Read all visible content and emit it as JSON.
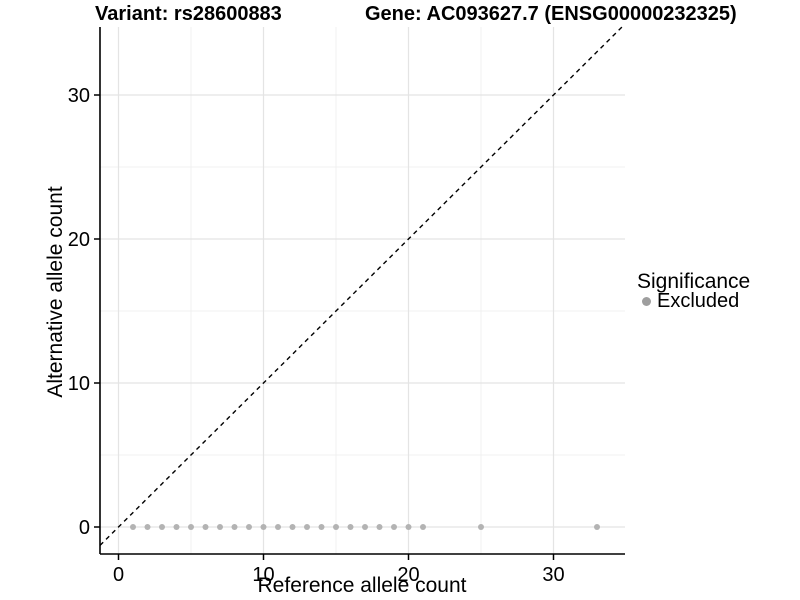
{
  "figure": {
    "title_variant": "Variant: rs28600883",
    "title_gene": "Gene: AC093627.7 (ENSG00000232325)"
  },
  "chart_data": {
    "type": "scatter",
    "title_left": "Variant: rs28600883",
    "title_right": "Gene: AC093627.7 (ENSG00000232325)",
    "xlabel": "Reference allele count",
    "ylabel": "Alternative allele count",
    "xlim": [
      -1.3,
      34.9
    ],
    "ylim": [
      -1.9,
      34.7
    ],
    "x_ticks": [
      0,
      10,
      20,
      30
    ],
    "x_minor_ticks": [
      5,
      15,
      25,
      35
    ],
    "y_ticks": [
      0,
      10,
      20,
      30
    ],
    "y_minor_ticks": [
      5,
      15,
      25
    ],
    "grid": {
      "on": true,
      "major_color": "#e4e4e4",
      "minor_color": "#f1f1f1"
    },
    "identity_line": {
      "style": "dashed",
      "slope": 1,
      "intercept": 0,
      "color": "#000000"
    },
    "series": [
      {
        "name": "Excluded",
        "color": "#b3b3b3",
        "points": [
          [
            1,
            0
          ],
          [
            2,
            0
          ],
          [
            3,
            0
          ],
          [
            4,
            0
          ],
          [
            5,
            0
          ],
          [
            6,
            0
          ],
          [
            7,
            0
          ],
          [
            8,
            0
          ],
          [
            9,
            0
          ],
          [
            10,
            0
          ],
          [
            11,
            0
          ],
          [
            12,
            0
          ],
          [
            13,
            0
          ],
          [
            14,
            0
          ],
          [
            15,
            0
          ],
          [
            16,
            0
          ],
          [
            17,
            0
          ],
          [
            18,
            0
          ],
          [
            19,
            0
          ],
          [
            20,
            0
          ],
          [
            21,
            0
          ],
          [
            25,
            0
          ],
          [
            33,
            0
          ]
        ]
      }
    ],
    "legend": {
      "title": "Significance",
      "position": "right",
      "items": [
        {
          "label": "Excluded",
          "color": "#9e9e9e"
        }
      ]
    }
  }
}
